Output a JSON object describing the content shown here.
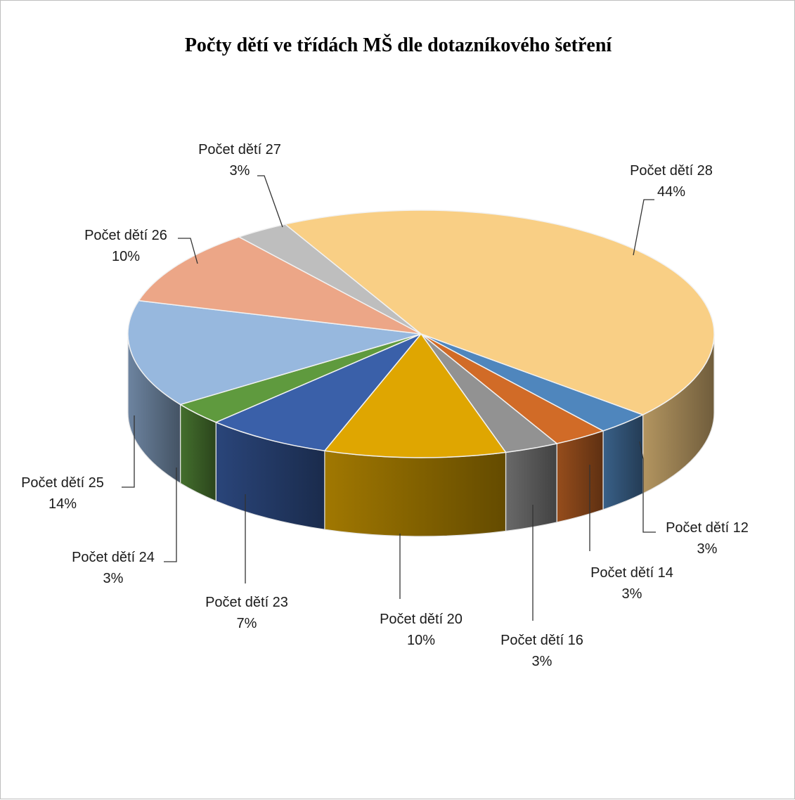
{
  "chart_data": {
    "type": "pie",
    "title": "Počty dětí ve třídách MŠ dle dotazníkového šetření",
    "style": "3d",
    "data_labels": "category-and-percent",
    "slices": [
      {
        "label": "Počet dětí 12",
        "value": 3,
        "percent_label": "3%",
        "color": "#4f86bd"
      },
      {
        "label": "Počet dětí 14",
        "value": 3,
        "percent_label": "3%",
        "color": "#d16b27"
      },
      {
        "label": "Počet dětí 16",
        "value": 3,
        "percent_label": "3%",
        "color": "#929292"
      },
      {
        "label": "Počet dětí 20",
        "value": 10,
        "percent_label": "10%",
        "color": "#dfa601"
      },
      {
        "label": "Počet dětí 23",
        "value": 7,
        "percent_label": "7%",
        "color": "#3a60a9"
      },
      {
        "label": "Počet dětí 24",
        "value": 3,
        "percent_label": "3%",
        "color": "#5f9a3e"
      },
      {
        "label": "Počet dětí 25",
        "value": 14,
        "percent_label": "14%",
        "color": "#97b8de"
      },
      {
        "label": "Počet dětí 26",
        "value": 10,
        "percent_label": "10%",
        "color": "#eca687"
      },
      {
        "label": "Počet dětí 27",
        "value": 3,
        "percent_label": "3%",
        "color": "#bebebe"
      },
      {
        "label": "Počet dětí 28",
        "value": 44,
        "percent_label": "44%",
        "color": "#f9cf85"
      }
    ]
  }
}
